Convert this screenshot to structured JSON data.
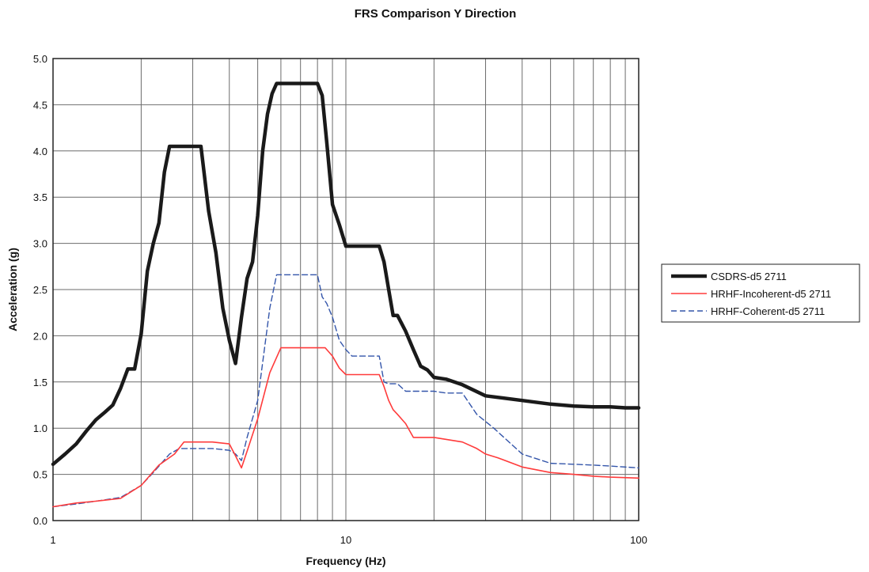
{
  "chart_data": {
    "type": "line",
    "title": "FRS Comparison Y Direction",
    "xlabel": "Frequency (Hz)",
    "ylabel": "Acceleration (g)",
    "xscale": "log",
    "xlim": [
      1,
      100
    ],
    "ylim": [
      0,
      5
    ],
    "x_ticks": [
      1,
      10,
      100
    ],
    "x_tick_labels": [
      "1",
      "10",
      "100"
    ],
    "y_ticks": [
      0,
      0.5,
      1,
      1.5,
      2,
      2.5,
      3,
      3.5,
      4,
      4.5,
      5
    ],
    "y_tick_labels": [
      "0.0",
      "0.5",
      "1.0",
      "1.5",
      "2.0",
      "2.5",
      "3.0",
      "3.5",
      "4.0",
      "4.5",
      "5.0"
    ],
    "grid": true,
    "legend_position": "right",
    "series": [
      {
        "name": "CSDRS-d5 2711",
        "color": "#1a1a1a",
        "style": "solid-thick",
        "x": [
          1.0,
          1.1,
          1.2,
          1.3,
          1.4,
          1.5,
          1.6,
          1.7,
          1.8,
          1.9,
          2.0,
          2.1,
          2.2,
          2.3,
          2.4,
          2.5,
          2.6,
          2.8,
          3.0,
          3.2,
          3.4,
          3.6,
          3.8,
          4.0,
          4.2,
          4.4,
          4.6,
          4.8,
          5.0,
          5.2,
          5.4,
          5.6,
          5.8,
          6.0,
          6.5,
          7.0,
          7.5,
          8.0,
          8.3,
          8.6,
          9.0,
          9.5,
          10.0,
          11.0,
          12.0,
          13.0,
          13.5,
          14.0,
          14.5,
          15.0,
          16.0,
          17.0,
          18.0,
          19.0,
          20.0,
          22.0,
          25.0,
          30.0,
          40.0,
          50.0,
          60.0,
          70.0,
          80.0,
          90.0,
          100.0
        ],
        "y": [
          0.61,
          0.72,
          0.83,
          0.97,
          1.09,
          1.17,
          1.25,
          1.43,
          1.64,
          1.64,
          2.02,
          2.7,
          3.0,
          3.22,
          3.77,
          4.05,
          4.05,
          4.05,
          4.05,
          4.05,
          3.35,
          2.9,
          2.3,
          1.95,
          1.7,
          2.2,
          2.62,
          2.8,
          3.3,
          4.0,
          4.4,
          4.62,
          4.73,
          4.73,
          4.73,
          4.73,
          4.73,
          4.73,
          4.6,
          4.1,
          3.42,
          3.2,
          2.97,
          2.97,
          2.97,
          2.97,
          2.8,
          2.5,
          2.22,
          2.22,
          2.05,
          1.85,
          1.67,
          1.63,
          1.55,
          1.53,
          1.47,
          1.35,
          1.3,
          1.26,
          1.24,
          1.23,
          1.23,
          1.22,
          1.22
        ]
      },
      {
        "name": "HRHF-Incoherent-d5 2711",
        "color": "#ff3b3b",
        "style": "solid-thin",
        "x": [
          1.0,
          1.2,
          1.4,
          1.7,
          2.0,
          2.3,
          2.6,
          2.8,
          3.0,
          3.5,
          4.0,
          4.2,
          4.4,
          4.6,
          5.0,
          5.5,
          6.0,
          7.0,
          8.0,
          8.5,
          9.0,
          9.5,
          10.0,
          11.0,
          12.0,
          13.0,
          13.5,
          14.0,
          14.5,
          15.0,
          16.0,
          17.0,
          18.0,
          20.0,
          25.0,
          28.0,
          30.0,
          33.0,
          40.0,
          50.0,
          60.0,
          70.0,
          80.0,
          100.0
        ],
        "y": [
          0.15,
          0.19,
          0.21,
          0.24,
          0.38,
          0.6,
          0.72,
          0.85,
          0.85,
          0.85,
          0.83,
          0.7,
          0.57,
          0.75,
          1.1,
          1.6,
          1.87,
          1.87,
          1.87,
          1.87,
          1.78,
          1.65,
          1.58,
          1.58,
          1.58,
          1.58,
          1.45,
          1.3,
          1.2,
          1.15,
          1.05,
          0.9,
          0.9,
          0.9,
          0.85,
          0.78,
          0.72,
          0.68,
          0.58,
          0.52,
          0.5,
          0.48,
          0.47,
          0.46
        ]
      },
      {
        "name": "HRHF-Coherent-d5 2711",
        "color": "#3355aa",
        "style": "dashed",
        "x": [
          1.0,
          1.2,
          1.4,
          1.7,
          2.0,
          2.2,
          2.5,
          2.7,
          3.0,
          3.5,
          4.0,
          4.2,
          4.4,
          4.6,
          5.0,
          5.5,
          5.8,
          6.0,
          7.0,
          8.0,
          8.3,
          8.6,
          9.0,
          9.5,
          10.0,
          10.5,
          11.0,
          12.0,
          13.0,
          13.5,
          14.0,
          15.0,
          16.0,
          17.0,
          18.0,
          20.0,
          22.0,
          25.0,
          28.0,
          32.0,
          40.0,
          50.0,
          60.0,
          70.0,
          80.0,
          100.0
        ],
        "y": [
          0.15,
          0.18,
          0.21,
          0.25,
          0.38,
          0.52,
          0.72,
          0.78,
          0.78,
          0.78,
          0.76,
          0.72,
          0.65,
          0.9,
          1.3,
          2.3,
          2.66,
          2.66,
          2.66,
          2.66,
          2.42,
          2.35,
          2.2,
          1.95,
          1.85,
          1.78,
          1.78,
          1.78,
          1.78,
          1.5,
          1.48,
          1.48,
          1.4,
          1.4,
          1.4,
          1.4,
          1.38,
          1.38,
          1.15,
          1.0,
          0.72,
          0.62,
          0.61,
          0.6,
          0.59,
          0.57
        ]
      }
    ]
  }
}
